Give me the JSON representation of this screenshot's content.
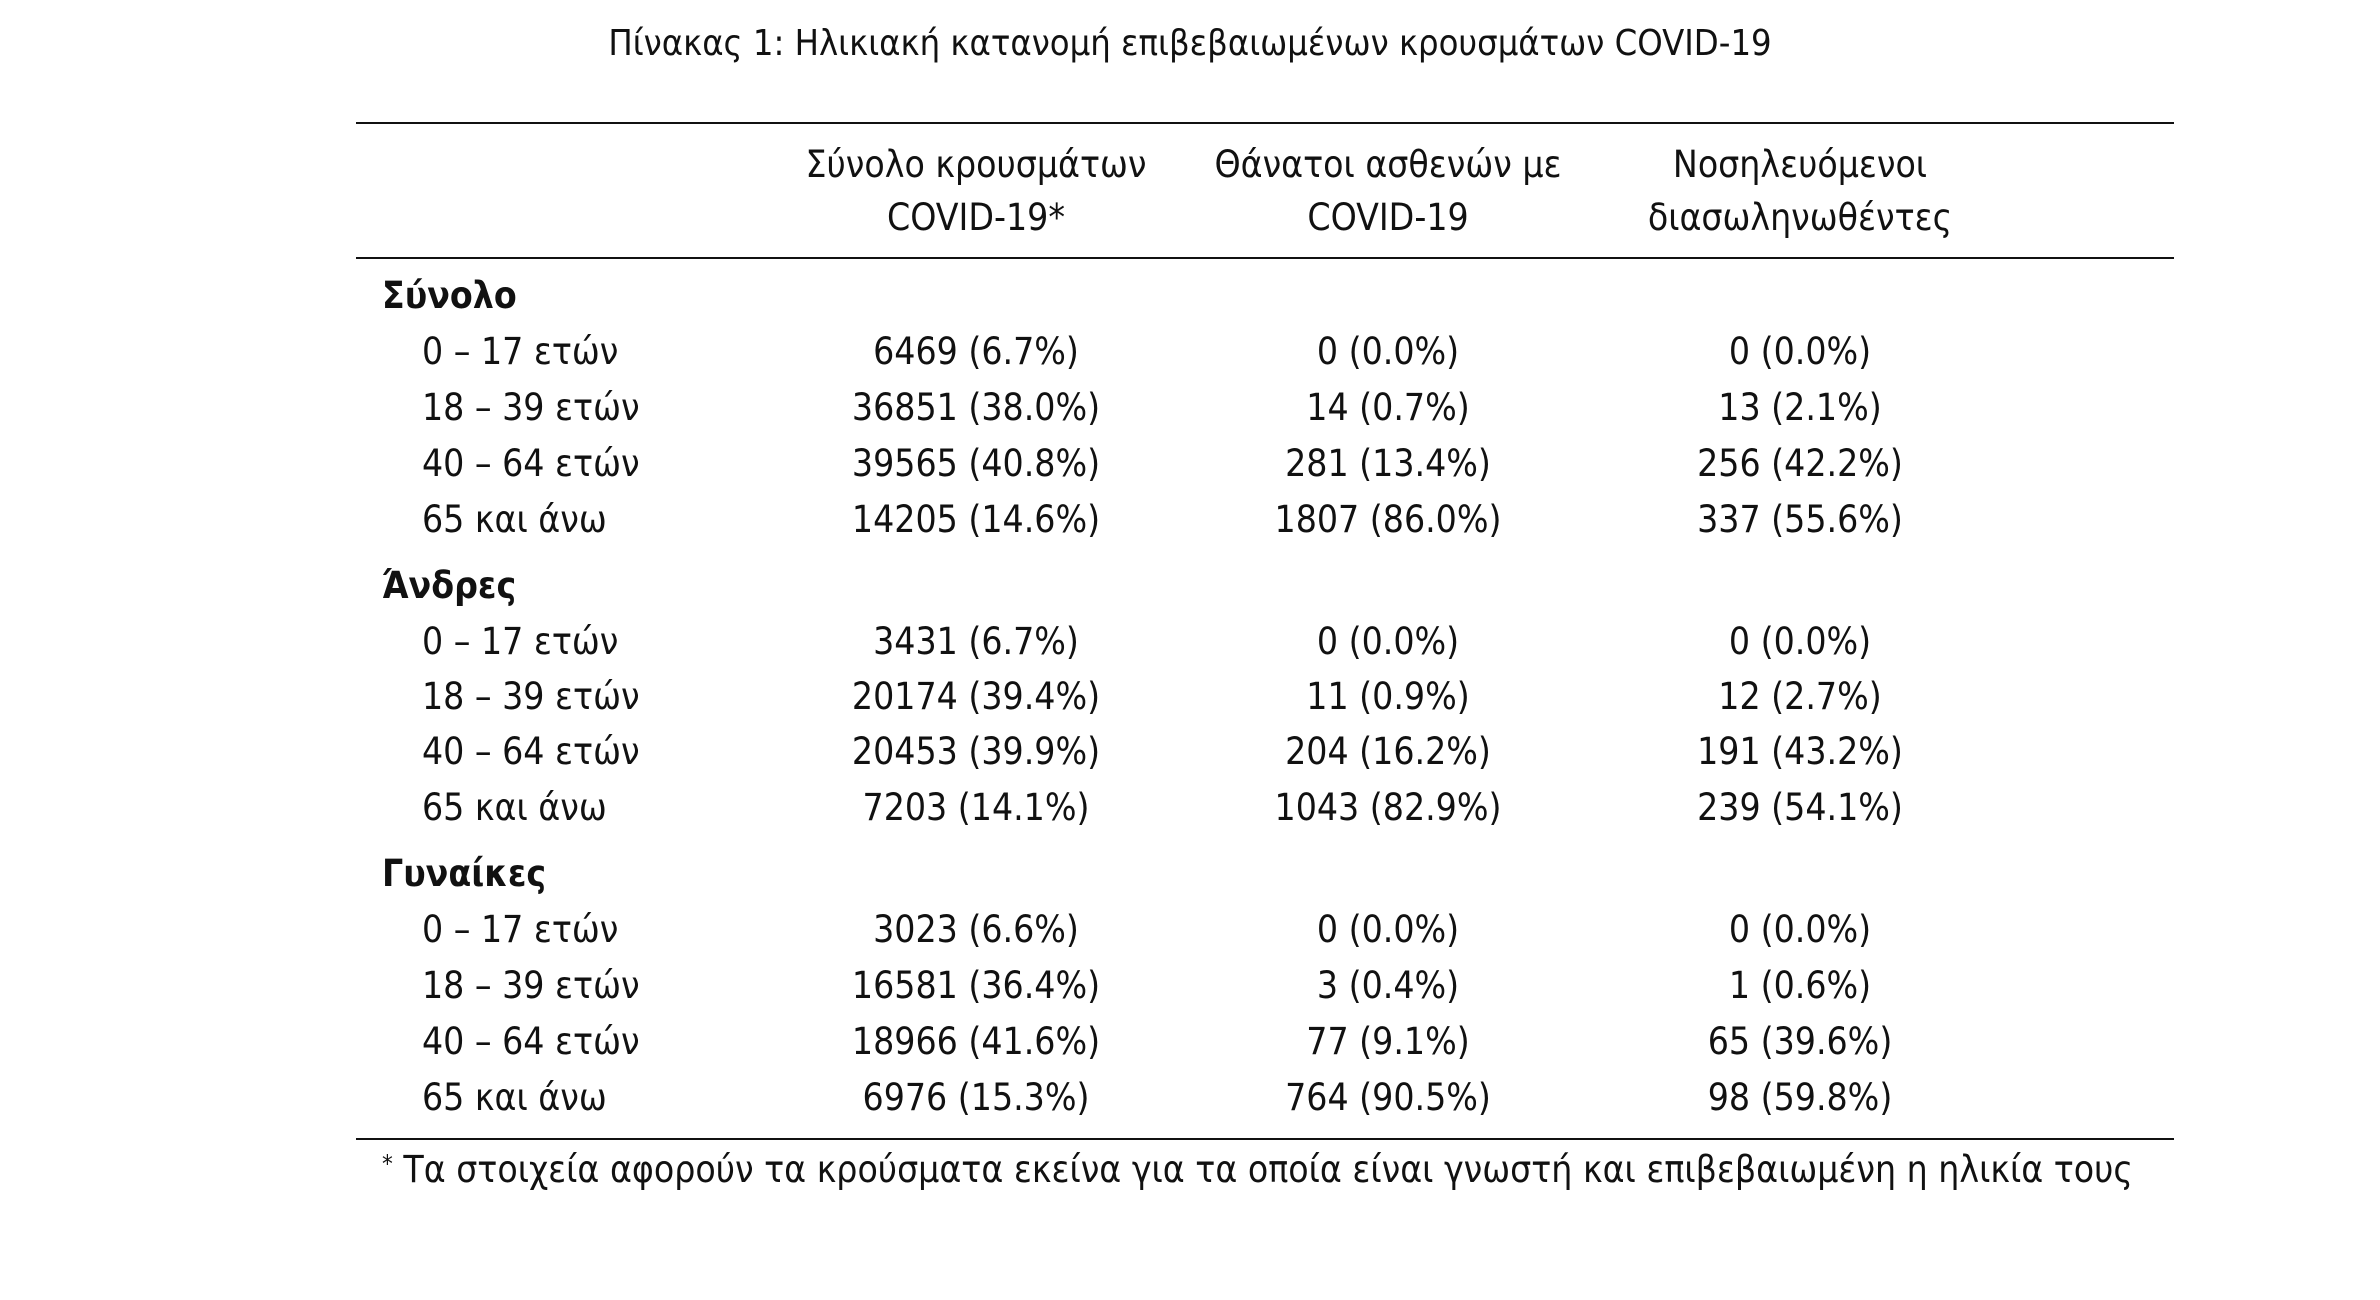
{
  "caption": "Πίνακας 1: Ηλικιακή κατανομή επιβεβαιωμένων κρουσμάτων COVID-19",
  "columns": [
    {
      "line1": "Σύνολο κρουσμάτων",
      "line2": "COVID-19*"
    },
    {
      "line1": "Θάνατοι ασθενών με",
      "line2": "COVID-19"
    },
    {
      "line1": "Νοσηλευόμενοι",
      "line2": "διασωληνωθέντες"
    }
  ],
  "groups": [
    {
      "title": "Σύνολο",
      "rows": [
        {
          "label": "0 – 17 ετών",
          "cases": "6469 (6.7%)",
          "deaths": "0 (0.0%)",
          "intubated": "0 (0.0%)"
        },
        {
          "label": "18 – 39 ετών",
          "cases": "36851 (38.0%)",
          "deaths": "14 (0.7%)",
          "intubated": "13 (2.1%)"
        },
        {
          "label": "40 – 64 ετών",
          "cases": "39565 (40.8%)",
          "deaths": "281 (13.4%)",
          "intubated": "256 (42.2%)"
        },
        {
          "label": "65 και άνω",
          "cases": "14205 (14.6%)",
          "deaths": "1807 (86.0%)",
          "intubated": "337 (55.6%)"
        }
      ]
    },
    {
      "title": "Άνδρες",
      "rows": [
        {
          "label": "0 – 17 ετών",
          "cases": "3431 (6.7%)",
          "deaths": "0 (0.0%)",
          "intubated": "0 (0.0%)"
        },
        {
          "label": "18 – 39 ετών",
          "cases": "20174 (39.4%)",
          "deaths": "11 (0.9%)",
          "intubated": "12 (2.7%)"
        },
        {
          "label": "40 – 64 ετών",
          "cases": "20453 (39.9%)",
          "deaths": "204 (16.2%)",
          "intubated": "191 (43.2%)"
        },
        {
          "label": "65 και άνω",
          "cases": "7203 (14.1%)",
          "deaths": "1043 (82.9%)",
          "intubated": "239 (54.1%)"
        }
      ]
    },
    {
      "title": "Γυναίκες",
      "rows": [
        {
          "label": "0 – 17 ετών",
          "cases": "3023 (6.6%)",
          "deaths": "0 (0.0%)",
          "intubated": "0 (0.0%)"
        },
        {
          "label": "18 – 39 ετών",
          "cases": "16581 (36.4%)",
          "deaths": "3 (0.4%)",
          "intubated": "1 (0.6%)"
        },
        {
          "label": "40 – 64 ετών",
          "cases": "18966 (41.6%)",
          "deaths": "77 (9.1%)",
          "intubated": "65 (39.6%)"
        },
        {
          "label": "65 και άνω",
          "cases": "6976 (15.3%)",
          "deaths": "764 (90.5%)",
          "intubated": "98 (59.8%)"
        }
      ]
    }
  ],
  "footnote": {
    "mark": "*",
    "text": " Τα στοιχεία αφορούν τα κρούσματα εκείνα για τα οποία είναι γνωστή και επιβεβαιωμένη η ηλικία τους"
  }
}
